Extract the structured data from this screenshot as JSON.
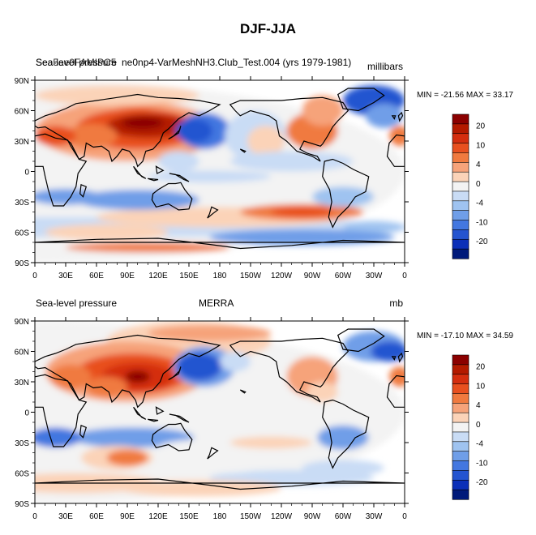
{
  "page_title": "DJF-JJA",
  "colorbar": {
    "levels": [
      "",
      "20",
      "",
      "10",
      "",
      "4",
      "",
      "0",
      "",
      "-4",
      "",
      "-10",
      "",
      "-20",
      ""
    ],
    "colors": [
      "#8b0000",
      "#b31a00",
      "#d42e0f",
      "#e8501f",
      "#f07a3f",
      "#f6a37a",
      "#fbd3b8",
      "#f3f3f3",
      "#c9dcf5",
      "#9fc3f0",
      "#6f9ee8",
      "#4377e0",
      "#2454d0",
      "#0b2fb8",
      "#001a7a"
    ]
  },
  "panels": [
    {
      "left_label": "Sea-level pressure",
      "left_label_overlap": "Sea5ae0FAMIPC5",
      "center_label": "ne0np4-VarMeshNH3.Club_Test.004 (yrs 1979-1981)",
      "right_label": "millibars",
      "min_max": "MIN = -21.56 MAX =  33.17"
    },
    {
      "left_label": "Sea-level pressure",
      "center_label": "MERRA",
      "right_label": "mb",
      "min_max": "MIN = -17.10 MAX =  34.59"
    }
  ],
  "chart_data": [
    {
      "type": "heatmap",
      "title": "Sea-level pressure  ne0np4-VarMeshNH3.Club_Test.004 (yrs 1979-1981)",
      "units": "millibars",
      "x_ticks": [
        "0",
        "30E",
        "60E",
        "90E",
        "120E",
        "150E",
        "180",
        "150W",
        "120W",
        "90W",
        "60W",
        "30W",
        "0"
      ],
      "y_ticks": [
        "90N",
        "60N",
        "30N",
        "0",
        "30S",
        "60S",
        "90S"
      ],
      "xlim": [
        0,
        360
      ],
      "ylim": [
        -90,
        90
      ],
      "min": -21.56,
      "max": 33.17,
      "colorbar_labels": [
        "20",
        "10",
        "4",
        "0",
        "-4",
        "-10",
        "-20"
      ]
    },
    {
      "type": "heatmap",
      "title": "Sea-level pressure  MERRA",
      "units": "mb",
      "x_ticks": [
        "0",
        "30E",
        "60E",
        "90E",
        "120E",
        "150E",
        "180",
        "150W",
        "120W",
        "90W",
        "60W",
        "30W",
        "0"
      ],
      "y_ticks": [
        "90N",
        "60N",
        "30N",
        "0",
        "30S",
        "60S",
        "90S"
      ],
      "xlim": [
        0,
        360
      ],
      "ylim": [
        -90,
        90
      ],
      "min": -17.1,
      "max": 34.59,
      "colorbar_labels": [
        "20",
        "10",
        "4",
        "0",
        "-4",
        "-10",
        "-20"
      ]
    }
  ]
}
